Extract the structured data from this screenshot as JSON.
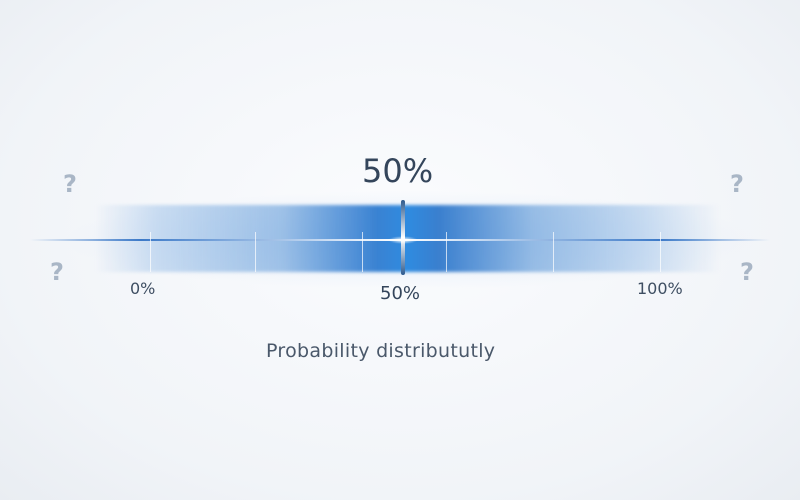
{
  "headline_value": "50%",
  "scale": {
    "min_label": "0%",
    "mid_label": "50%",
    "max_label": "100%",
    "marker_value_percent": 50
  },
  "caption": "Probability distribututly",
  "question_marks": [
    "?",
    "?",
    "?",
    "?"
  ],
  "colors": {
    "bar_center": "#2f8be0",
    "bar_edge": "#a9c8ec",
    "text": "#3a4a5e",
    "question_mark": "#a9b6c6"
  }
}
